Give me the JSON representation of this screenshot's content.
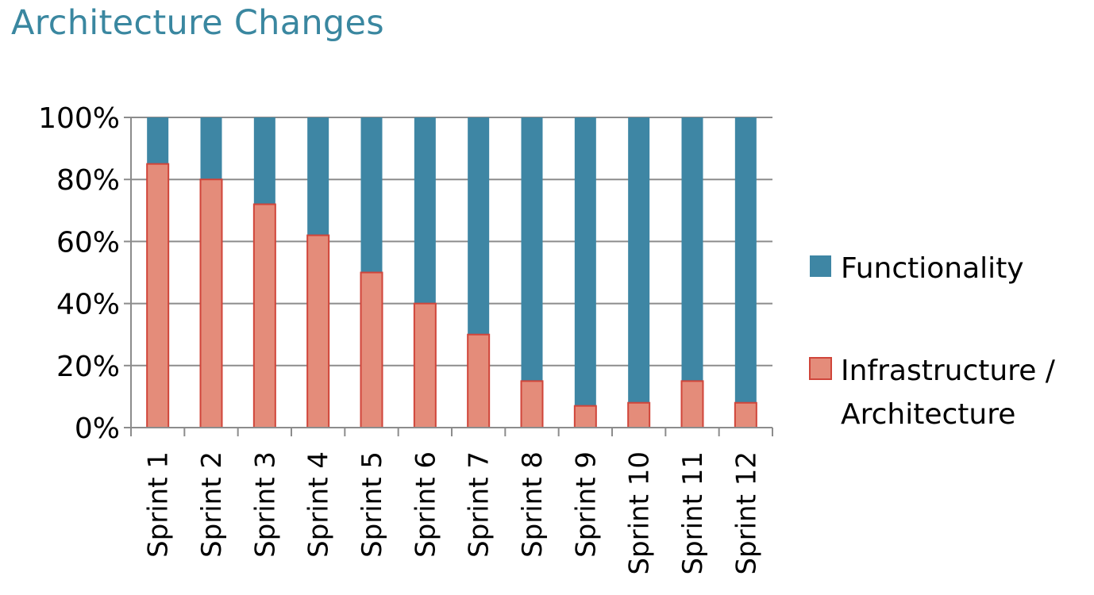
{
  "title": "Architecture Changes",
  "colors": {
    "title": "#3a87a0",
    "functionality": "#3e86a4",
    "infrastructure_fill": "#e48c7a",
    "infrastructure_stroke": "#d0453a",
    "grid": "#8c8c8c",
    "axis": "#8c8c8c"
  },
  "chart_data": {
    "type": "bar",
    "stacked": true,
    "normalized": true,
    "categories": [
      "Sprint 1",
      "Sprint 2",
      "Sprint 3",
      "Sprint 4",
      "Sprint 5",
      "Sprint 6",
      "Sprint 7",
      "Sprint 8",
      "Sprint 9",
      "Sprint 10",
      "Sprint 11",
      "Sprint 12"
    ],
    "series": [
      {
        "name": "Infrastructure / Architecture",
        "legend_lines": [
          "Infrastructure /",
          "Architecture"
        ],
        "values": [
          85,
          80,
          72,
          62,
          50,
          40,
          30,
          15,
          7,
          8,
          15,
          8
        ]
      },
      {
        "name": "Functionality",
        "legend_lines": [
          "Functionality"
        ],
        "values": [
          15,
          20,
          28,
          38,
          50,
          60,
          70,
          85,
          93,
          92,
          85,
          92
        ]
      }
    ],
    "y_ticks": [
      "0%",
      "20%",
      "40%",
      "60%",
      "80%",
      "100%"
    ],
    "ylim": [
      0,
      100
    ],
    "xlabel": "",
    "ylabel": "",
    "grid": true,
    "legend_position": "right",
    "x_tick_rotation": "vertical"
  }
}
